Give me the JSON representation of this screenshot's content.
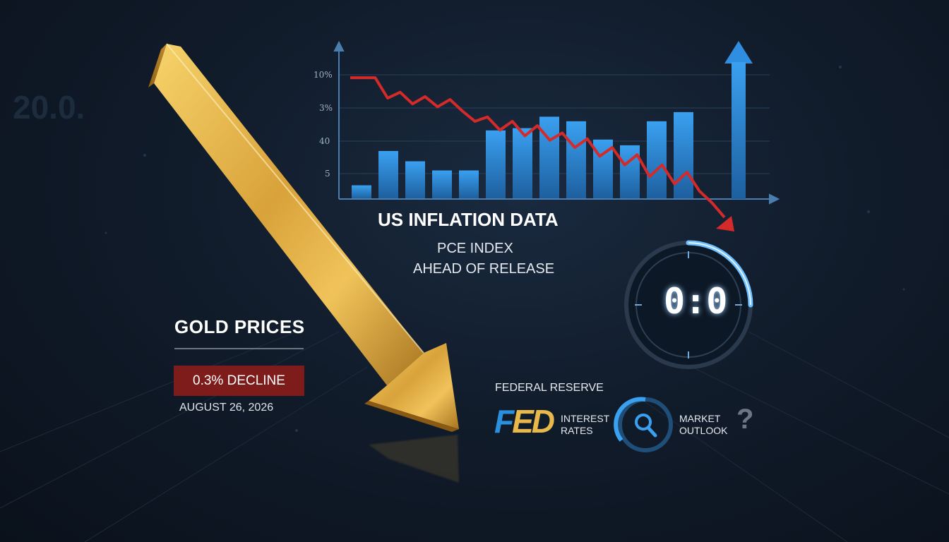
{
  "background_number": "20.0.",
  "chart": {
    "y_tick_labels": [
      "10%",
      "3%",
      "40",
      "5"
    ],
    "title": "US INFLATION DATA",
    "subtitle_line1": "PCE INDEX",
    "subtitle_line2": "AHEAD OF RELEASE"
  },
  "chart_data": {
    "type": "bar",
    "y_tick_labels": [
      "10%",
      "3%",
      "40",
      "5"
    ],
    "bar_heights_relative": [
      0.12,
      0.42,
      0.33,
      0.25,
      0.25,
      0.6,
      0.62,
      0.72,
      0.68,
      0.52,
      0.47,
      0.68,
      0.76,
      1.0
    ],
    "overlay_line_relative": [
      0.98,
      0.98,
      0.98,
      0.84,
      0.88,
      0.8,
      0.85,
      0.78,
      0.83,
      0.75,
      0.68,
      0.71,
      0.62,
      0.68,
      0.58,
      0.65,
      0.55,
      0.6,
      0.5,
      0.56,
      0.44,
      0.5,
      0.38,
      0.45,
      0.3,
      0.38,
      0.25,
      0.33,
      0.2,
      0.12,
      0.02
    ],
    "bar_color": "#2f8ee0",
    "line_color": "#d42a2a"
  },
  "gold": {
    "title": "GOLD PRICES",
    "decline": "0.3% DECLINE",
    "date": "AUGUST 26, 2026"
  },
  "timer": {
    "display": "0:0"
  },
  "fed": {
    "section_title": "FEDERAL RESERVE",
    "logo_f": "F",
    "logo_ed": "ED",
    "interest_line1": "INTEREST",
    "interest_line2": "RATES",
    "market_line1": "MARKET",
    "market_line2": "OUTLOOK",
    "question": "?"
  },
  "colors": {
    "gold": "#e8b84a",
    "blue": "#2f8ee0",
    "red": "#d42a2a",
    "badge": "#7e1c1c"
  },
  "icons": [
    "down-arrow-icon",
    "up-arrow-icon",
    "search-icon",
    "question-icon"
  ]
}
